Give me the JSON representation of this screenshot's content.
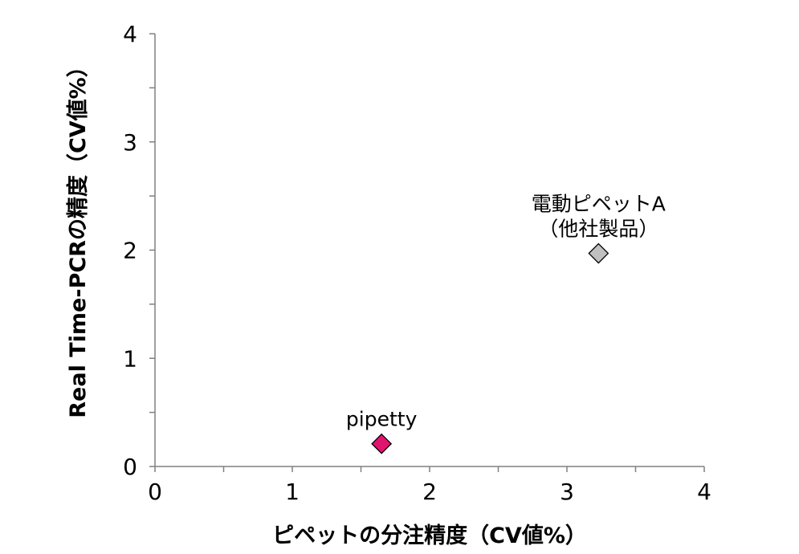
{
  "chart_data": {
    "type": "scatter",
    "xlabel": "ピペットの分注精度（CV値%）",
    "ylabel": "Real Time-PCRの精度（CV値%）",
    "xlim": [
      0,
      4
    ],
    "ylim": [
      0,
      4
    ],
    "x_ticks": [
      "0",
      "1",
      "2",
      "3",
      "4"
    ],
    "y_ticks": [
      "0",
      "1",
      "2",
      "3",
      "4"
    ],
    "grid": false,
    "points": [
      {
        "name": "pipetty",
        "label_lines": [
          "pipetty"
        ],
        "x": 1.65,
        "y": 0.21,
        "color": "#e0156f",
        "marker": "diamond"
      },
      {
        "name": "電動ピペットA（他社製品）",
        "label_lines": [
          "電動ピペットA",
          "（他社製品）"
        ],
        "x": 3.23,
        "y": 1.97,
        "color": "#c0c0c0",
        "marker": "diamond"
      }
    ]
  }
}
